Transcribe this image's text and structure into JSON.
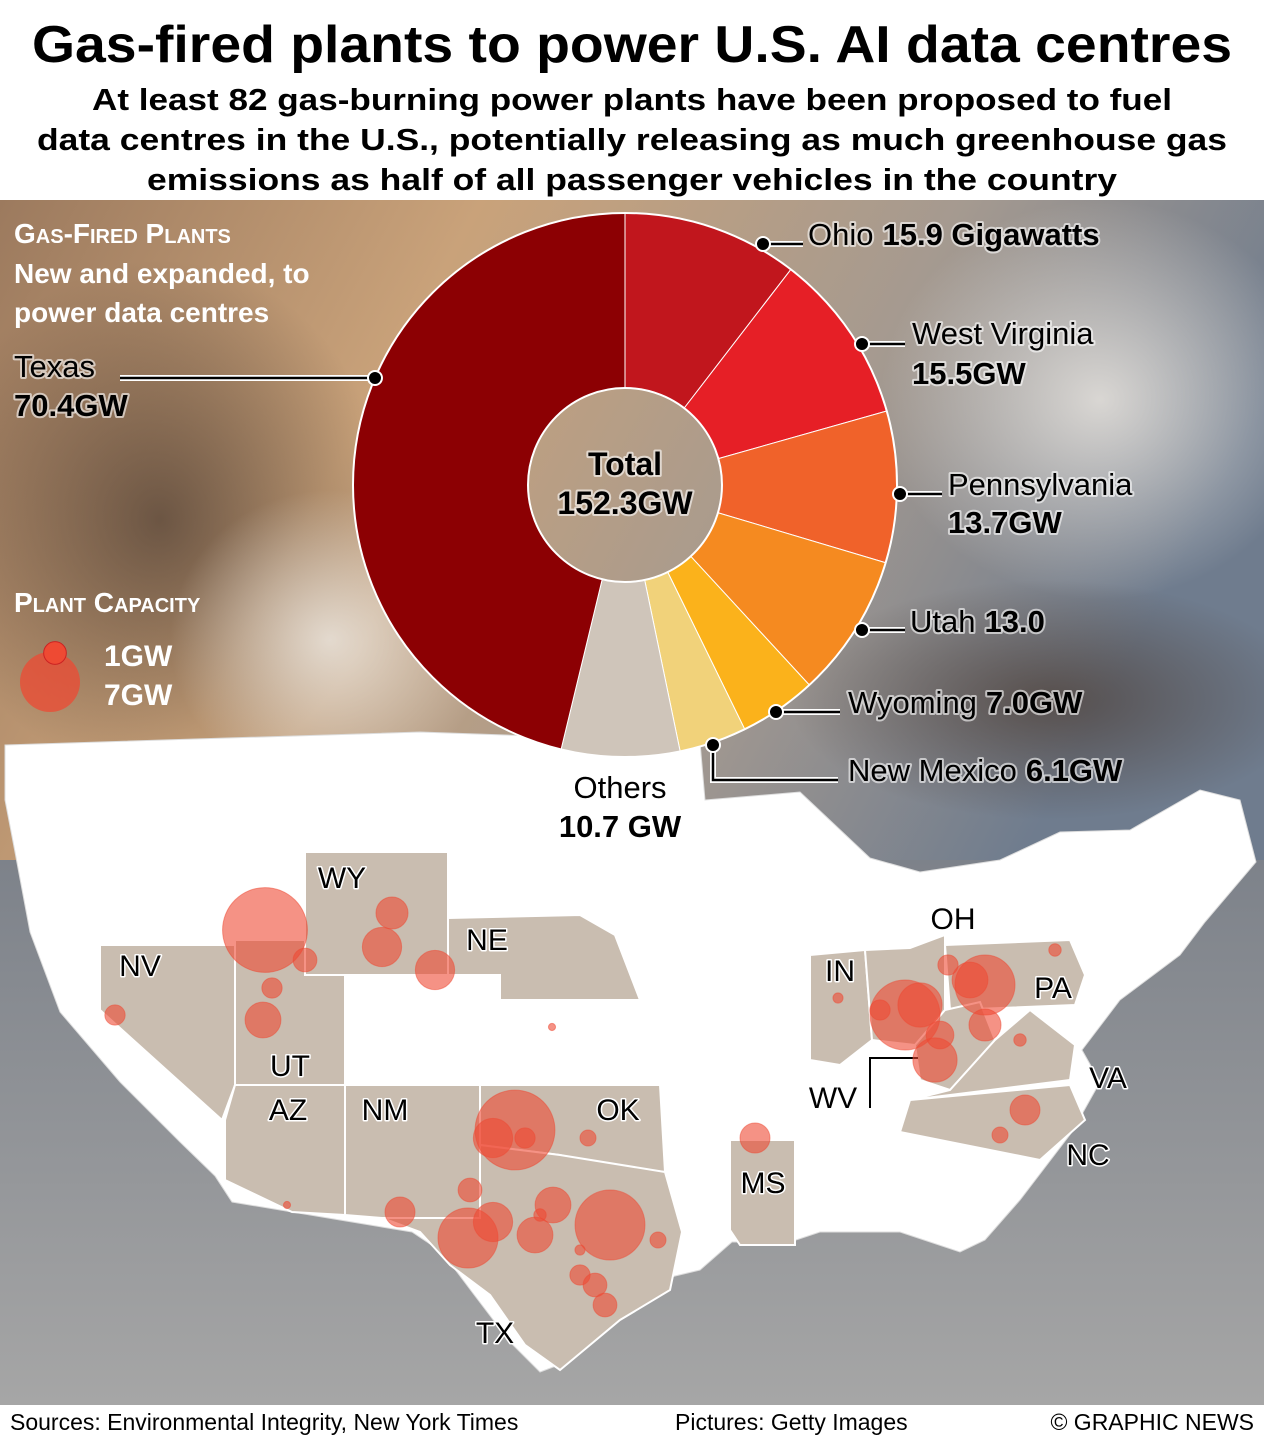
{
  "chart_data": {
    "type": "donut",
    "title": "Gas-fired plants to power U.S. AI data centres",
    "subtitle": [
      "At least 82 gas-burning power plants have been proposed to fuel",
      "data centres in the U.S., potentially releasing as much greenhouse gas",
      "emissions as half of all passenger vehicles in the country"
    ],
    "panel_title": "Gas-Fired Plants",
    "panel_subtitle": [
      "New and expanded, to",
      "power data centres"
    ],
    "categories": [
      "Ohio",
      "West Virginia",
      "Pennsylvania",
      "Utah",
      "Wyoming",
      "New Mexico",
      "Others",
      "Texas"
    ],
    "values": [
      15.9,
      15.5,
      13.7,
      13.0,
      7.0,
      6.1,
      10.7,
      70.4
    ],
    "value_labels": [
      "15.9 Gigawatts",
      "15.5GW",
      "13.7GW",
      "13.0",
      "7.0GW",
      "6.1GW",
      "10.7 GW",
      "70.4GW"
    ],
    "colors": [
      "#c1161d",
      "#e61f26",
      "#f0622a",
      "#f58a20",
      "#fbb21b",
      "#f1d27a",
      "#cfc5ba",
      "#8c0003"
    ],
    "center_title": "Total",
    "total": {
      "value": 152.3,
      "label": "152.3GW"
    },
    "capacity_legend_title": "Plant  Capacity",
    "capacity_legend": [
      {
        "value": 1,
        "label": "1GW"
      },
      {
        "value": 7,
        "label": "7GW"
      }
    ],
    "bubble_color": "#ee4a33",
    "state_labels": [
      "WY",
      "NE",
      "NV",
      "UT",
      "AZ",
      "NM",
      "OK",
      "TX",
      "MS",
      "IN",
      "OH",
      "PA",
      "WV",
      "VA",
      "NC"
    ],
    "plant_capacities": [
      14,
      1.1,
      2,
      3,
      3,
      0.8,
      2.5,
      0.8,
      0.1,
      0.1,
      12.4,
      3,
      0.8,
      0.5,
      1.1,
      1.75,
      7,
      3,
      2.5,
      2.5,
      9.5,
      0.5,
      0.3,
      0.8,
      1.1,
      1.1,
      0.2,
      1.75,
      0.2,
      9.5,
      3.8,
      3.8,
      1.5,
      7,
      2.5,
      0.3,
      2,
      0.3,
      1.75,
      0.5,
      0.8,
      0.8
    ],
    "sources": "Sources: Environmental Integrity, New York Times",
    "pictures": "Pictures: Getty Images",
    "credit": "© GRAPHIC NEWS"
  }
}
